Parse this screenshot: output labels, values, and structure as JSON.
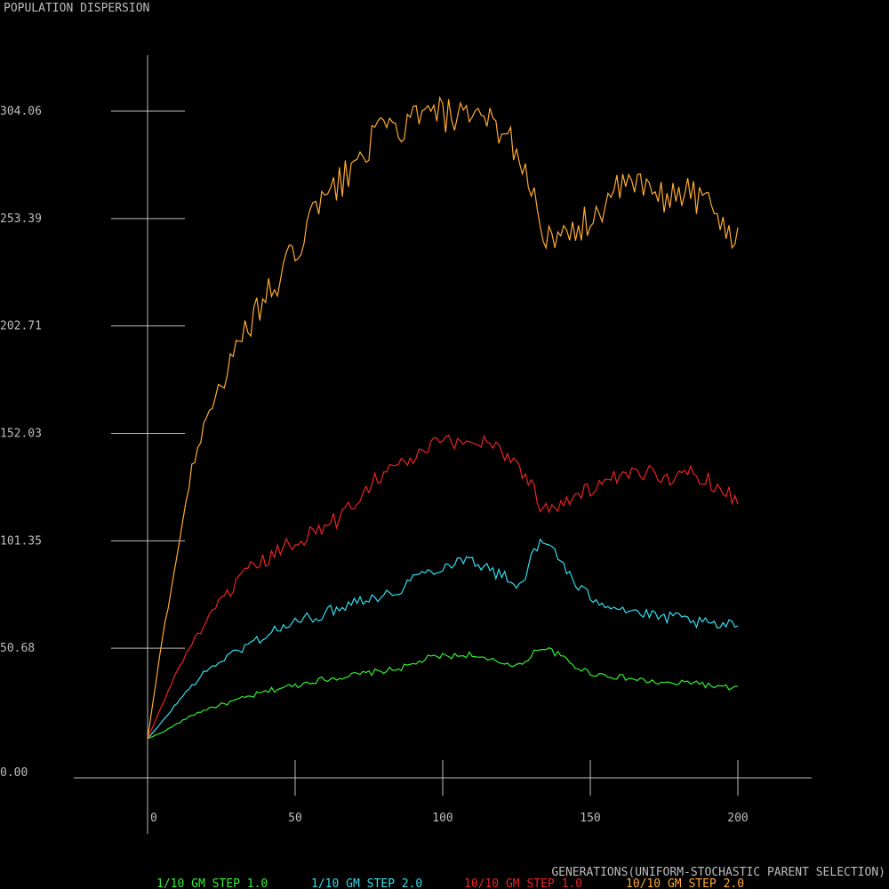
{
  "chart_data": {
    "type": "line",
    "title": "POPULATION DISPERSION",
    "xlabel": "GENERATIONS(UNIFORM-STOCHASTIC PARENT SELECTION)",
    "ylabel": "",
    "xlim": [
      0,
      200
    ],
    "ylim": [
      0,
      304.06
    ],
    "x_ticks": [
      "0",
      "50",
      "100",
      "150",
      "200"
    ],
    "x_tick_values": [
      0,
      50,
      100,
      150,
      200
    ],
    "y_ticks": [
      "0.00",
      "50.68",
      "101.35",
      "152.03",
      "202.71",
      "253.39",
      "304.06"
    ],
    "y_tick_values": [
      0,
      50.68,
      101.35,
      152.03,
      202.71,
      253.39,
      304.06
    ],
    "colors": {
      "axis": "#bdbdbd",
      "background": "#000000"
    },
    "legend_position": "bottom",
    "series": [
      {
        "name": "1/10 GM STEP 1.0",
        "color": "#33ee33",
        "points": [
          [
            0,
            8
          ],
          [
            5,
            11
          ],
          [
            10,
            15
          ],
          [
            15,
            19
          ],
          [
            20,
            22
          ],
          [
            25,
            24
          ],
          [
            30,
            26
          ],
          [
            35,
            28
          ],
          [
            40,
            30
          ],
          [
            45,
            32
          ],
          [
            50,
            33
          ],
          [
            55,
            35
          ],
          [
            60,
            36
          ],
          [
            65,
            37
          ],
          [
            70,
            38
          ],
          [
            75,
            39
          ],
          [
            80,
            40
          ],
          [
            85,
            41
          ],
          [
            90,
            43
          ],
          [
            95,
            46
          ],
          [
            100,
            47
          ],
          [
            105,
            47
          ],
          [
            110,
            48
          ],
          [
            112,
            46
          ],
          [
            115,
            45
          ],
          [
            120,
            44
          ],
          [
            125,
            43
          ],
          [
            128,
            43
          ],
          [
            130,
            48
          ],
          [
            133,
            51
          ],
          [
            136,
            50
          ],
          [
            140,
            47
          ],
          [
            145,
            42
          ],
          [
            150,
            39
          ],
          [
            155,
            38
          ],
          [
            160,
            37
          ],
          [
            165,
            36
          ],
          [
            170,
            35
          ],
          [
            175,
            34
          ],
          [
            180,
            34
          ],
          [
            185,
            35
          ],
          [
            190,
            33
          ],
          [
            195,
            32
          ],
          [
            200,
            32
          ]
        ]
      },
      {
        "name": "1/10 GM STEP 2.0",
        "color": "#33ddee",
        "points": [
          [
            0,
            8
          ],
          [
            5,
            16
          ],
          [
            10,
            25
          ],
          [
            15,
            33
          ],
          [
            20,
            40
          ],
          [
            25,
            45
          ],
          [
            30,
            49
          ],
          [
            35,
            53
          ],
          [
            40,
            57
          ],
          [
            45,
            60
          ],
          [
            50,
            63
          ],
          [
            55,
            65
          ],
          [
            60,
            67
          ],
          [
            65,
            70
          ],
          [
            70,
            73
          ],
          [
            75,
            75
          ],
          [
            80,
            75
          ],
          [
            85,
            78
          ],
          [
            90,
            84
          ],
          [
            95,
            87
          ],
          [
            100,
            89
          ],
          [
            105,
            92
          ],
          [
            110,
            93
          ],
          [
            113,
            90
          ],
          [
            118,
            86
          ],
          [
            122,
            84
          ],
          [
            125,
            80
          ],
          [
            127,
            82
          ],
          [
            130,
            93
          ],
          [
            133,
            100
          ],
          [
            137,
            99
          ],
          [
            141,
            90
          ],
          [
            145,
            80
          ],
          [
            150,
            75
          ],
          [
            155,
            72
          ],
          [
            160,
            70
          ],
          [
            165,
            68
          ],
          [
            170,
            66
          ],
          [
            175,
            65
          ],
          [
            180,
            65
          ],
          [
            185,
            63
          ],
          [
            190,
            62
          ],
          [
            195,
            61
          ],
          [
            200,
            62
          ]
        ]
      },
      {
        "name": "10/10 GM STEP 1.0",
        "color": "#ee2222",
        "points": [
          [
            0,
            8
          ],
          [
            5,
            24
          ],
          [
            10,
            40
          ],
          [
            15,
            53
          ],
          [
            20,
            63
          ],
          [
            25,
            73
          ],
          [
            30,
            81
          ],
          [
            35,
            88
          ],
          [
            40,
            92
          ],
          [
            45,
            97
          ],
          [
            50,
            101
          ],
          [
            55,
            105
          ],
          [
            60,
            108
          ],
          [
            65,
            112
          ],
          [
            70,
            120
          ],
          [
            75,
            128
          ],
          [
            80,
            134
          ],
          [
            85,
            137
          ],
          [
            90,
            140
          ],
          [
            95,
            145
          ],
          [
            100,
            148
          ],
          [
            105,
            148
          ],
          [
            110,
            148
          ],
          [
            115,
            149
          ],
          [
            120,
            144
          ],
          [
            125,
            138
          ],
          [
            130,
            128
          ],
          [
            133,
            118
          ],
          [
            137,
            118
          ],
          [
            141,
            120
          ],
          [
            145,
            122
          ],
          [
            150,
            126
          ],
          [
            155,
            128
          ],
          [
            160,
            131
          ],
          [
            165,
            132
          ],
          [
            170,
            134
          ],
          [
            175,
            132
          ],
          [
            180,
            131
          ],
          [
            185,
            134
          ],
          [
            190,
            130
          ],
          [
            195,
            126
          ],
          [
            200,
            120
          ]
        ]
      },
      {
        "name": "10/10 GM STEP 2.0",
        "color": "#ffaa33",
        "points": [
          [
            0,
            8
          ],
          [
            5,
            55
          ],
          [
            10,
            95
          ],
          [
            15,
            135
          ],
          [
            20,
            162
          ],
          [
            25,
            175
          ],
          [
            30,
            190
          ],
          [
            35,
            205
          ],
          [
            40,
            215
          ],
          [
            45,
            225
          ],
          [
            50,
            238
          ],
          [
            55,
            252
          ],
          [
            60,
            262
          ],
          [
            65,
            270
          ],
          [
            70,
            278
          ],
          [
            75,
            289
          ],
          [
            80,
            294
          ],
          [
            85,
            296
          ],
          [
            90,
            300
          ],
          [
            95,
            302
          ],
          [
            100,
            303
          ],
          [
            105,
            300
          ],
          [
            110,
            298
          ],
          [
            115,
            300
          ],
          [
            120,
            296
          ],
          [
            125,
            286
          ],
          [
            130,
            268
          ],
          [
            133,
            254
          ],
          [
            137,
            240
          ],
          [
            141,
            242
          ],
          [
            145,
            248
          ],
          [
            150,
            254
          ],
          [
            155,
            260
          ],
          [
            160,
            267
          ],
          [
            165,
            270
          ],
          [
            170,
            266
          ],
          [
            175,
            262
          ],
          [
            180,
            268
          ],
          [
            185,
            265
          ],
          [
            190,
            260
          ],
          [
            195,
            250
          ],
          [
            200,
            245
          ]
        ]
      }
    ]
  }
}
